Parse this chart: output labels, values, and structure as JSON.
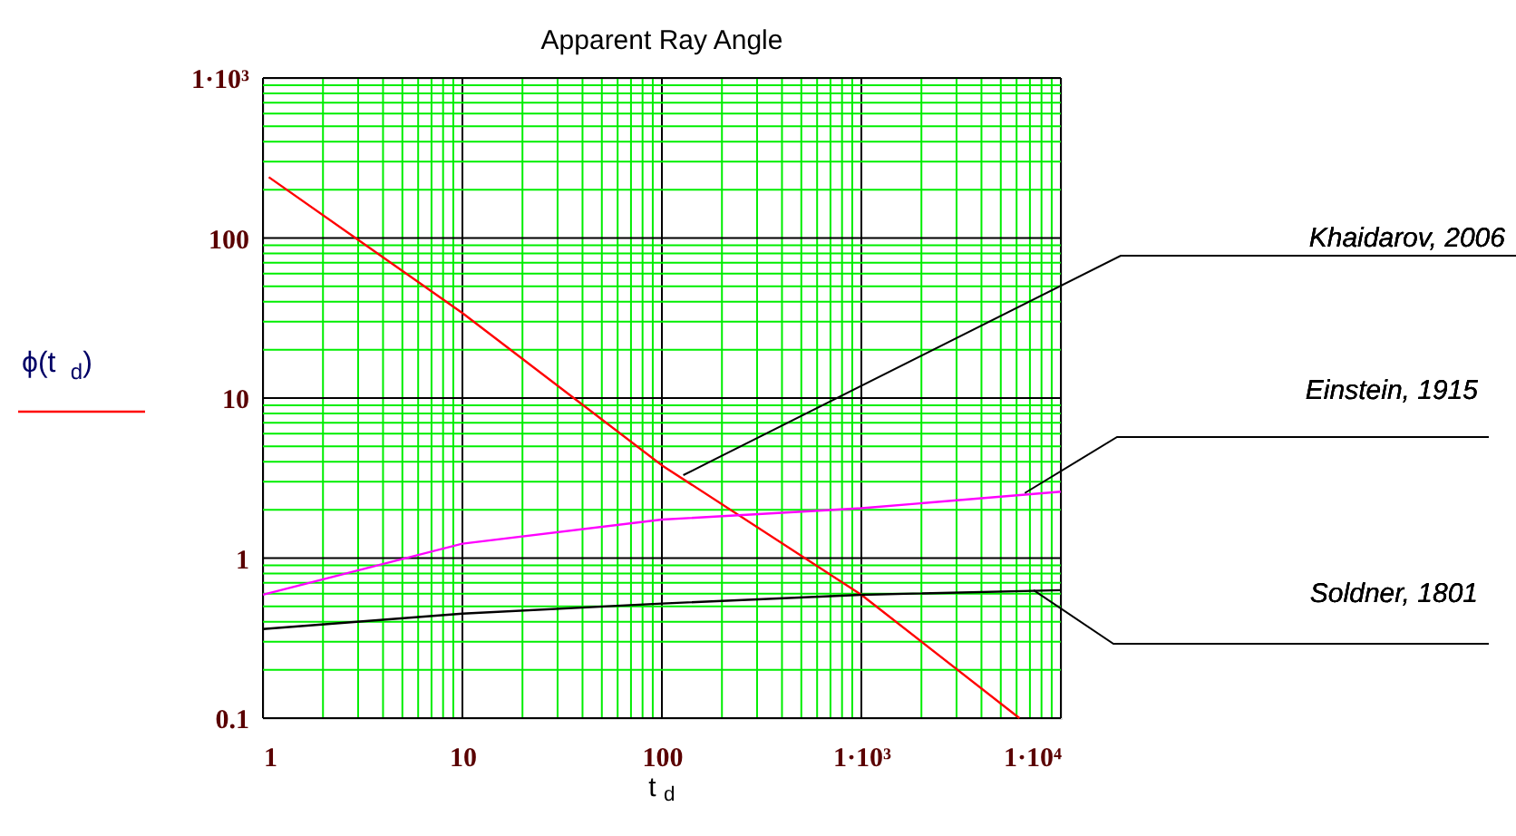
{
  "chart_data": {
    "type": "line",
    "title": "Apparent Ray Angle",
    "xlabel": "t$_{d}$",
    "ylabel": "ϕ(t$_{d}$)",
    "log": "xy",
    "grid": true,
    "line_style": "solid",
    "marker": "none",
    "xlim": [
      1,
      10000
    ],
    "ylim": [
      0.1,
      1000
    ],
    "xticks": [
      1,
      {
        "value": 2,
        "label": null
      },
      {
        "value": 3,
        "label": null
      },
      {
        "value": 4,
        "label": null
      },
      {
        "value": 5,
        "label": null
      },
      {
        "value": 6,
        "label": null
      },
      {
        "value": 7,
        "label": null
      },
      {
        "value": 8,
        "label": null
      },
      {
        "value": 9,
        "label": null
      },
      10,
      {
        "value": 20,
        "label": null
      },
      {
        "value": 30,
        "label": null
      },
      {
        "value": 40,
        "label": null
      },
      {
        "value": 50,
        "label": null
      },
      {
        "value": 60,
        "label": null
      },
      {
        "value": 70,
        "label": null
      },
      {
        "value": 80,
        "label": null
      },
      {
        "value": 90,
        "label": null
      },
      100,
      {
        "value": 200,
        "label": null
      },
      {
        "value": 300,
        "label": null
      },
      {
        "value": 400,
        "label": null
      },
      {
        "value": 500,
        "label": null
      },
      {
        "value": 600,
        "label": null
      },
      {
        "value": 700,
        "label": null
      },
      {
        "value": 800,
        "label": null
      },
      {
        "value": 900,
        "label": null
      },
      {
        "value": 1000,
        "label": "1·10³"
      },
      {
        "value": 2000,
        "label": null
      },
      {
        "value": 3000,
        "label": null
      },
      {
        "value": 4000,
        "label": null
      },
      {
        "value": 5000,
        "label": null
      },
      {
        "value": 6000,
        "label": null
      },
      {
        "value": 7000,
        "label": null
      },
      {
        "value": 8000,
        "label": null
      },
      {
        "value": 9000,
        "label": null
      },
      {
        "value": 10000,
        "label": "1·10⁴"
      }
    ],
    "yticks": [
      0.1,
      {
        "value": 0.2,
        "label": null
      },
      {
        "value": 0.3,
        "label": null
      },
      {
        "value": 0.4,
        "label": null
      },
      {
        "value": 0.5,
        "label": null
      },
      {
        "value": 0.6,
        "label": null
      },
      {
        "value": 0.7,
        "label": null
      },
      {
        "value": 0.8,
        "label": null
      },
      {
        "value": 0.9,
        "label": null
      },
      1,
      {
        "value": 2,
        "label": null
      },
      {
        "value": 3,
        "label": null
      },
      {
        "value": 4,
        "label": null
      },
      {
        "value": 5,
        "label": null
      },
      {
        "value": 6,
        "label": null
      },
      {
        "value": 7,
        "label": null
      },
      {
        "value": 8,
        "label": null
      },
      {
        "value": 9,
        "label": null
      },
      10,
      {
        "value": 20,
        "label": null
      },
      {
        "value": 30,
        "label": null
      },
      {
        "value": 40,
        "label": null
      },
      {
        "value": 50,
        "label": null
      },
      {
        "value": 60,
        "label": null
      },
      {
        "value": 70,
        "label": null
      },
      {
        "value": 80,
        "label": null
      },
      {
        "value": 90,
        "label": null
      },
      100,
      {
        "value": 200,
        "label": null
      },
      {
        "value": 300,
        "label": null
      },
      {
        "value": 400,
        "label": null
      },
      {
        "value": 500,
        "label": null
      },
      {
        "value": 600,
        "label": null
      },
      {
        "value": 700,
        "label": null
      },
      {
        "value": 800,
        "label": null
      },
      {
        "value": 900,
        "label": null
      },
      {
        "value": 1000,
        "label": "1·10³"
      }
    ],
    "series": [
      {
        "color": "#ff0000",
        "x": [
          1.07,
          10,
          100,
          1000,
          6200
        ],
        "values": [
          240,
          34,
          3.8,
          0.59,
          0.1
        ]
      },
      {
        "color": "#ff00ff",
        "x": [
          1,
          10,
          100,
          1000,
          10000
        ],
        "values": [
          0.59,
          1.23,
          1.74,
          2.05,
          2.6
        ]
      },
      {
        "color": "#000000",
        "x": [
          1,
          10,
          100,
          1000,
          10000
        ],
        "values": [
          0.36,
          0.45,
          0.52,
          0.59,
          0.63
        ]
      }
    ],
    "annotations": [
      {
        "text": "Khaidarov, 2006",
        "x": 128,
        "y": 3.3
      },
      {
        "text": "Einstein, 1915",
        "x": 6600,
        "y": 2.55
      },
      {
        "text": "Soldner, 1801",
        "x": 7300,
        "y": 0.63
      }
    ]
  }
}
